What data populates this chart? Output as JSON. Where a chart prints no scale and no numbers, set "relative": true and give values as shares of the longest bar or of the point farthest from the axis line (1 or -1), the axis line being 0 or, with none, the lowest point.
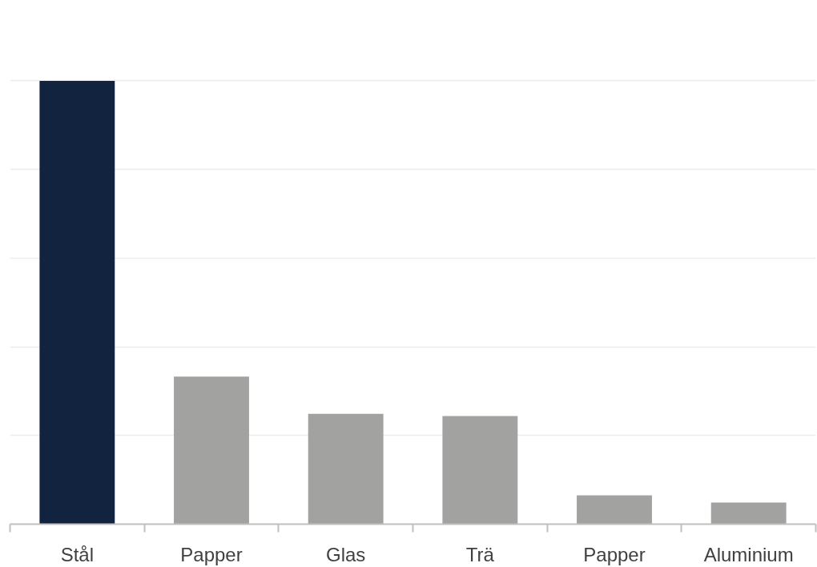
{
  "chart_data": {
    "type": "bar",
    "relative": true,
    "categories": [
      "Stål",
      "Papper",
      "Glas",
      "Trä",
      "Papper",
      "Aluminium"
    ],
    "values": [
      1,
      0.333,
      0.249,
      0.244,
      0.065,
      0.049
    ],
    "colors": [
      "#12233f",
      "#a2a3a1",
      "#a2a3a1",
      "#a2a3a1",
      "#a2a3a1",
      "#a2a3a1"
    ],
    "grid": "y"
  }
}
